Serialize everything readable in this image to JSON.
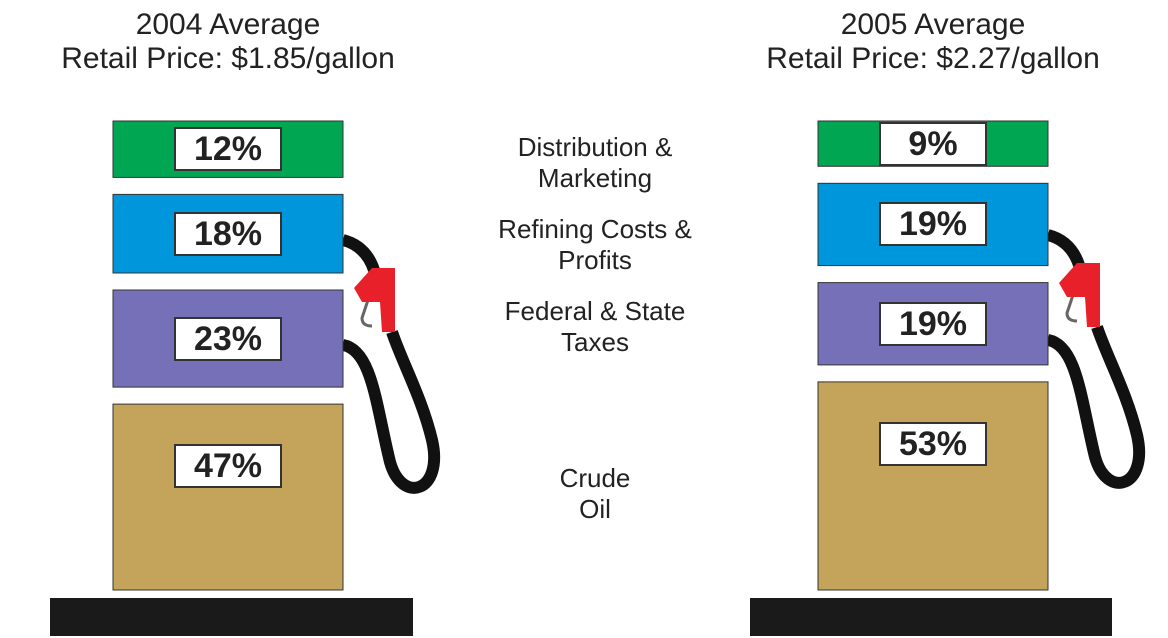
{
  "chart_data": {
    "type": "bar",
    "categories": [
      "Distribution &\nMarketing",
      "Refining Costs &\nProfits",
      "Federal & State\nTaxes",
      "Crude\nOil"
    ],
    "colors": [
      "#00a651",
      "#0096db",
      "#7570b8",
      "#c4a35a"
    ],
    "series": [
      {
        "name": "2004 Average\nRetail Price: $1.85/gallon",
        "values": [
          12,
          18,
          23,
          47
        ],
        "value_labels": [
          "12%",
          "18%",
          "23%",
          "47%"
        ]
      },
      {
        "name": "2005 Average\nRetail Price: $2.27/gallon",
        "values": [
          9,
          19,
          19,
          53
        ],
        "value_labels": [
          "9%",
          "19%",
          "19%",
          "53%"
        ]
      }
    ]
  }
}
